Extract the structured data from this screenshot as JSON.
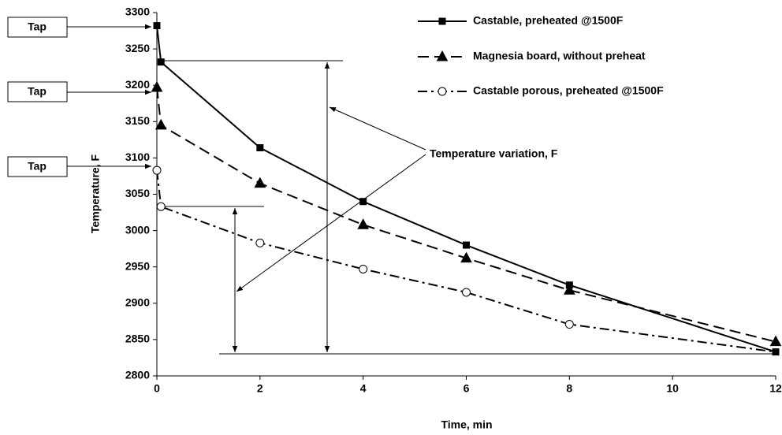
{
  "chart_data": {
    "type": "line",
    "xlabel": "Time, min",
    "ylabel": "Temperature, F",
    "xlim": [
      0,
      12
    ],
    "xticks": [
      0,
      2,
      4,
      6,
      8,
      10,
      12
    ],
    "ylim": [
      2800,
      3300
    ],
    "yticks": [
      2800,
      2850,
      2900,
      2950,
      3000,
      3050,
      3100,
      3150,
      3200,
      3250,
      3300
    ],
    "series": [
      {
        "name": "Castable, preheated @1500F",
        "color": "#000000",
        "dash": "solid",
        "marker": "square",
        "x": [
          0,
          0.08,
          2,
          4,
          6,
          8,
          12
        ],
        "values": [
          3282,
          3232,
          3114,
          3040,
          2980,
          2925,
          2833
        ]
      },
      {
        "name": "Magnesia board, without preheat",
        "color": "#000000",
        "dash": "dashed",
        "marker": "triangle",
        "x": [
          0,
          0.08,
          2,
          4,
          6,
          8,
          12
        ],
        "values": [
          3197,
          3145,
          3065,
          3008,
          2962,
          2918,
          2847
        ]
      },
      {
        "name": "Castable porous, preheated @1500F",
        "color": "#000000",
        "dash": "dashdot",
        "marker": "circle",
        "x": [
          0,
          0.08,
          2,
          4,
          6,
          8,
          12
        ],
        "values": [
          3083,
          3033,
          2983,
          2947,
          2915,
          2871,
          2833
        ]
      }
    ],
    "annotations": [
      "Tap",
      "Tap",
      "Tap",
      "Temperature variation, F"
    ]
  }
}
